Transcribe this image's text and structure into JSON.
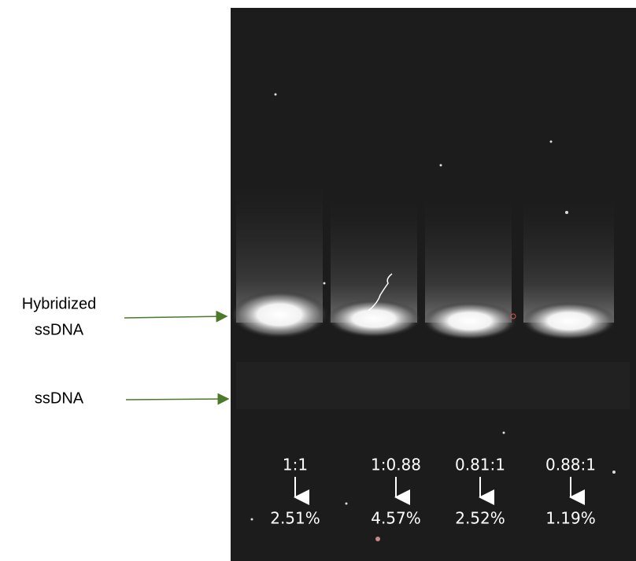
{
  "labels": {
    "hybridized": [
      "Hybridized",
      "ssDNA"
    ],
    "ssdna": "ssDNA"
  },
  "lanes": [
    {
      "ratio": "1:1",
      "percent": "2.51%"
    },
    {
      "ratio": "1:0.88",
      "percent": "4.57%"
    },
    {
      "ratio": "0.81:1",
      "percent": "2.52%"
    },
    {
      "ratio": "0.88:1",
      "percent": "1.19%"
    }
  ]
}
